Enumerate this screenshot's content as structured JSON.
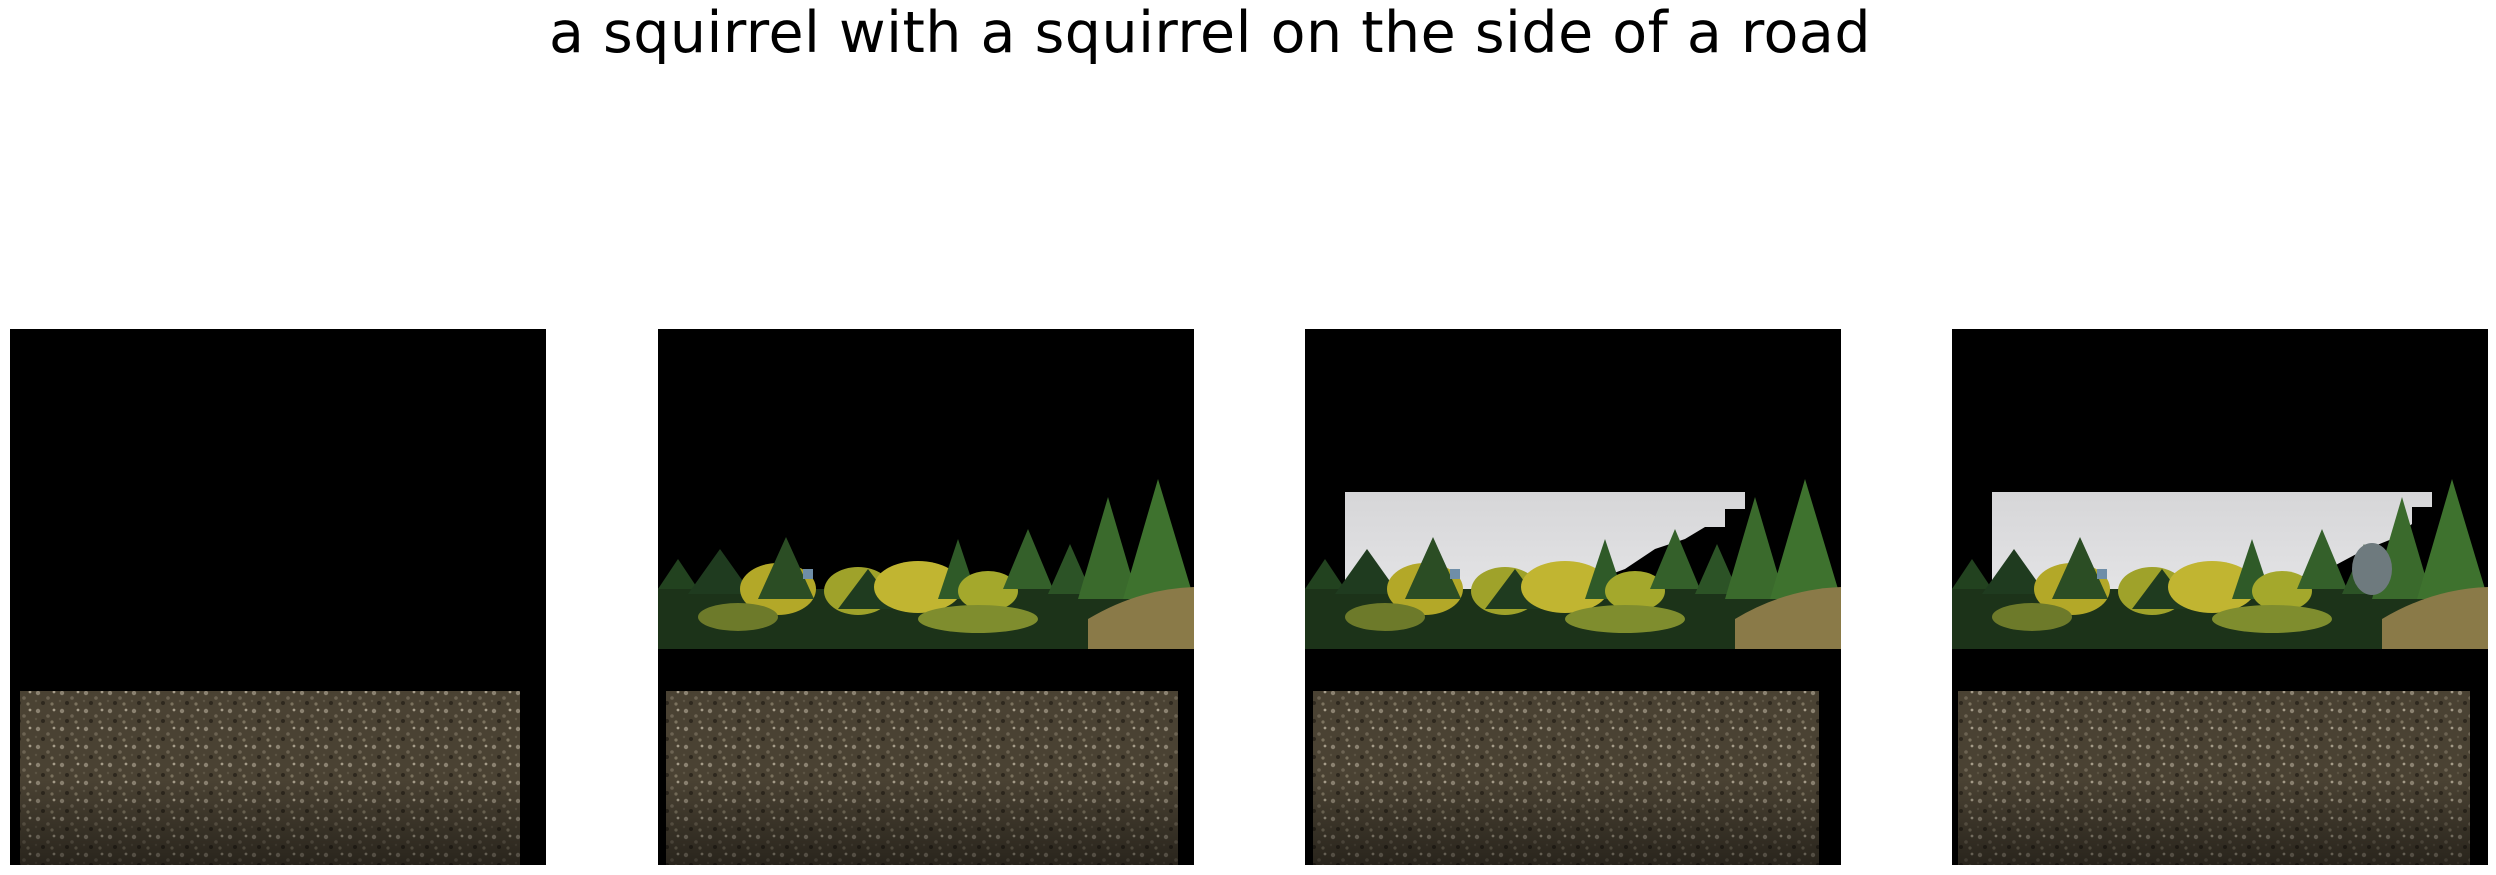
{
  "figure": {
    "title": "a squirrel with a squirrel on the side of a road"
  },
  "panels": [
    {
      "content": "ground-only"
    },
    {
      "content": "ground-and-trees"
    },
    {
      "content": "ground-trees-sky"
    },
    {
      "content": "ground-trees-sky-variant"
    }
  ],
  "colors": {
    "background": "#000000",
    "ground": "#4a4233",
    "tree_dark": "#1f3b1f",
    "tree_mid": "#3a6a2c",
    "foliage_yellow": "#b3a828",
    "brush_brown": "#8a7a48",
    "sky": "#dcdcde"
  }
}
